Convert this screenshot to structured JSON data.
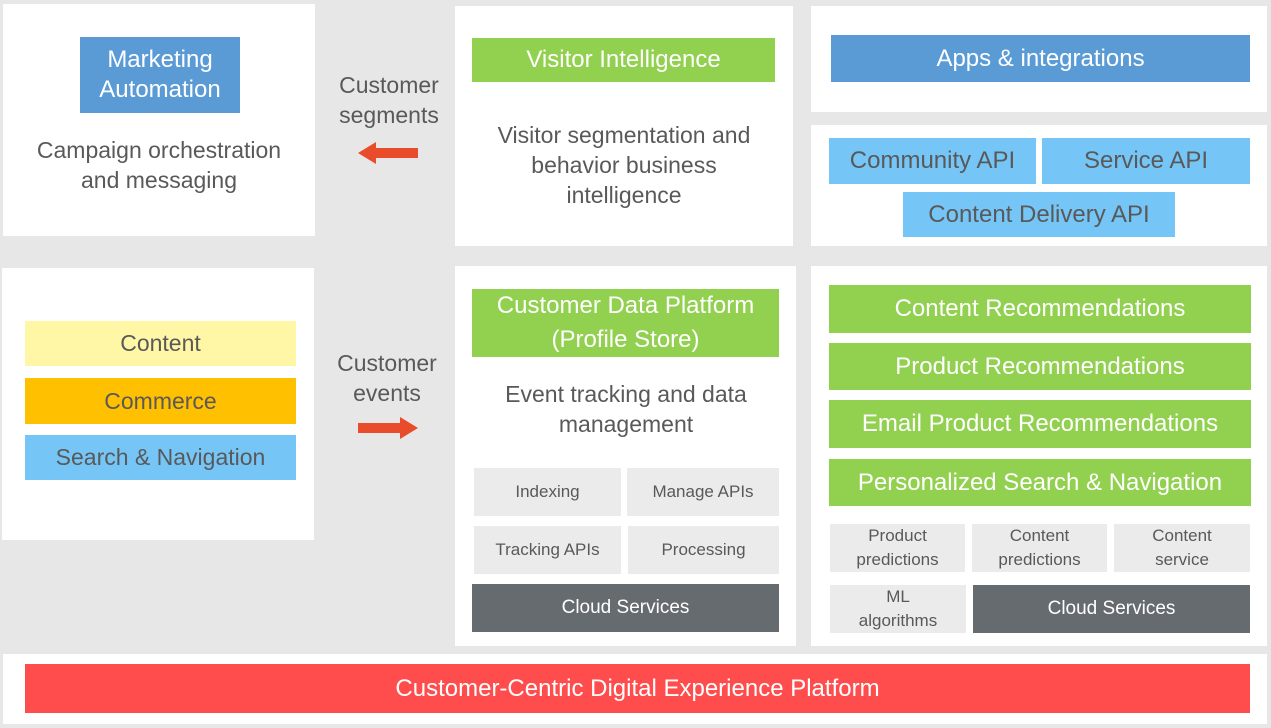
{
  "marketing": {
    "title": "Marketing Automation",
    "description": "Campaign orchestration and messaging"
  },
  "segments_label": "Customer segments",
  "events_label": "Customer events",
  "visitor": {
    "title": "Visitor Intelligence",
    "description": "Visitor segmentation and behavior business intelligence"
  },
  "apps": {
    "title": "Apps & integrations"
  },
  "apis": [
    "Community API",
    "Service API",
    "Content Delivery API"
  ],
  "channels": [
    "Content",
    "Commerce",
    "Search & Navigation"
  ],
  "cdp": {
    "title": "Customer Data Platform (Profile Store)",
    "description": "Event tracking and data management",
    "services": [
      "Indexing",
      "Manage APIs",
      "Tracking APIs",
      "Processing"
    ],
    "cloud": "Cloud Services"
  },
  "recommendations": [
    "Content Recommendations",
    "Product Recommendations",
    "Email Product Recommendations",
    "Personalized Search & Navigation"
  ],
  "rec_services": [
    "Product predictions",
    "Content predictions",
    "Content service",
    "ML algorithms"
  ],
  "rec_cloud": "Cloud Services",
  "platform": "Customer-Centric Digital Experience Platform",
  "colors": {
    "blue": "#5b9bd5",
    "green": "#92d050",
    "light_blue": "#75c6f7",
    "yellow": "#fff6a6",
    "orange": "#ffc000",
    "red": "#ff4d4d",
    "arrow": "#e84c2b",
    "dark": "#666b70"
  }
}
